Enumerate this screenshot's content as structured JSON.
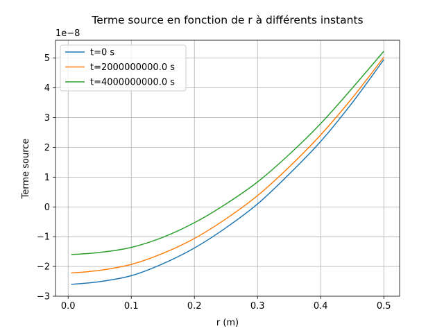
{
  "chart_data": {
    "type": "line",
    "title": "Terme source en fonction de r à différents instants",
    "xlabel": "r (m)",
    "ylabel": "Terme source",
    "y_offset_label": "1e−8",
    "xlim": [
      -0.02,
      0.525
    ],
    "ylim": [
      -3,
      5.6
    ],
    "x_ticks": [
      0.0,
      0.1,
      0.2,
      0.3,
      0.4,
      0.5
    ],
    "x_tick_labels": [
      "0.0",
      "0.1",
      "0.2",
      "0.3",
      "0.4",
      "0.5"
    ],
    "y_ticks": [
      -3,
      -2,
      -1,
      0,
      1,
      2,
      3,
      4,
      5
    ],
    "y_tick_labels": [
      "−3",
      "−2",
      "−1",
      "0",
      "1",
      "2",
      "3",
      "4",
      "5"
    ],
    "grid": true,
    "legend_position": "upper-left",
    "x": [
      0.005,
      0.05,
      0.1,
      0.15,
      0.2,
      0.25,
      0.3,
      0.35,
      0.4,
      0.45,
      0.5
    ],
    "series": [
      {
        "name": "t=0 s",
        "color": "#1f77b4",
        "values": [
          -2.6,
          -2.51,
          -2.31,
          -1.91,
          -1.38,
          -0.7,
          0.1,
          1.1,
          2.2,
          3.5,
          4.95
        ]
      },
      {
        "name": "t=2000000000.0 s",
        "color": "#ff7f0e",
        "values": [
          -2.22,
          -2.13,
          -1.93,
          -1.56,
          -1.06,
          -0.4,
          0.38,
          1.34,
          2.42,
          3.66,
          5.03
        ]
      },
      {
        "name": "t=4000000000.0 s",
        "color": "#2ca02c",
        "values": [
          -1.6,
          -1.53,
          -1.36,
          -1.02,
          -0.53,
          0.1,
          0.84,
          1.76,
          2.8,
          3.99,
          5.23
        ]
      }
    ]
  }
}
